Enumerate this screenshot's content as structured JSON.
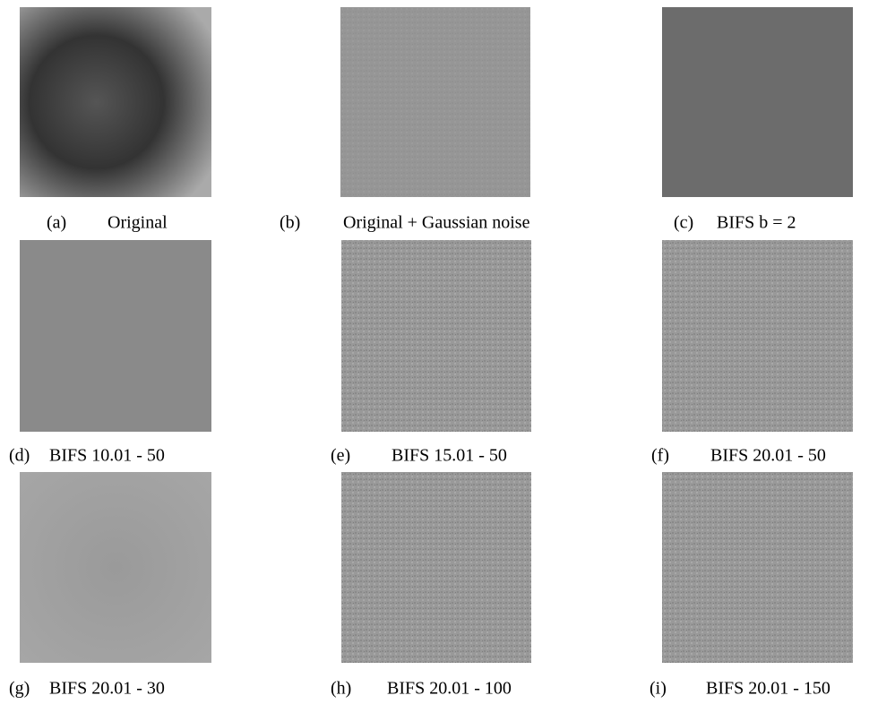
{
  "panels": [
    {
      "label": "(a)",
      "caption": "Original"
    },
    {
      "label": "(b)",
      "caption": "Original + Gaussian noise"
    },
    {
      "label": "(c)",
      "caption": "BIFS b = 2"
    },
    {
      "label": "(d)",
      "caption": "BIFS 10.01 - 50"
    },
    {
      "label": "(e)",
      "caption": "BIFS 15.01 - 50"
    },
    {
      "label": "(f)",
      "caption": "BIFS 20.01 - 50"
    },
    {
      "label": "(g)",
      "caption": "BIFS 20.01 - 30"
    },
    {
      "label": "(h)",
      "caption": "BIFS 20.01 - 100"
    },
    {
      "label": "(i)",
      "caption": "BIFS 20.01 - 150"
    }
  ]
}
